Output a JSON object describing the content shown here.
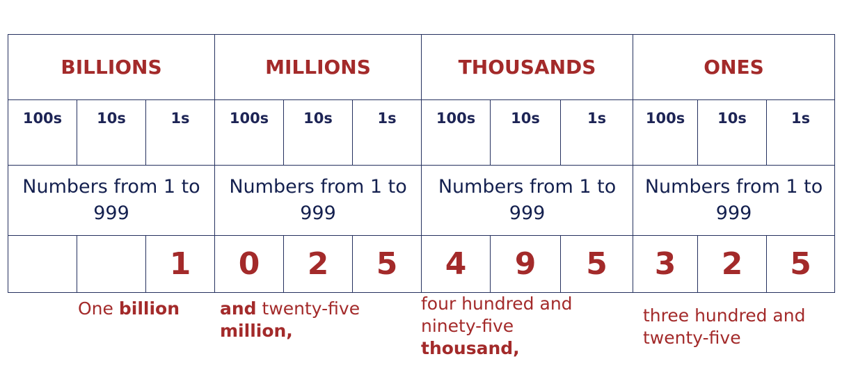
{
  "periods": [
    "BILLIONS",
    "MILLIONS",
    "THOUSANDS",
    "ONES"
  ],
  "place_values": {
    "hundreds": "100s",
    "tens": "10s",
    "ones": "1s"
  },
  "range_text": "Numbers from 1 to 999",
  "digits": {
    "billions": [
      "",
      "",
      "1"
    ],
    "millions": [
      "0",
      "2",
      "5"
    ],
    "thousands": [
      "4",
      "9",
      "5"
    ],
    "ones": [
      "3",
      "2",
      "5"
    ]
  },
  "words": {
    "billions": {
      "text": "One ",
      "bold": "billion"
    },
    "millions": {
      "bold_1": "and",
      "text": " twenty-five",
      "bold_2": "million,"
    },
    "thousands": {
      "line_1": "four hundred and",
      "line_2": "ninety-five",
      "bold": "thousand,"
    },
    "ones": {
      "line_1": "three hundred and",
      "line_2": "twenty-five"
    }
  },
  "colors": {
    "accent_red": "#a32a2a",
    "navy": "#1d2455",
    "border": "#24305e"
  }
}
